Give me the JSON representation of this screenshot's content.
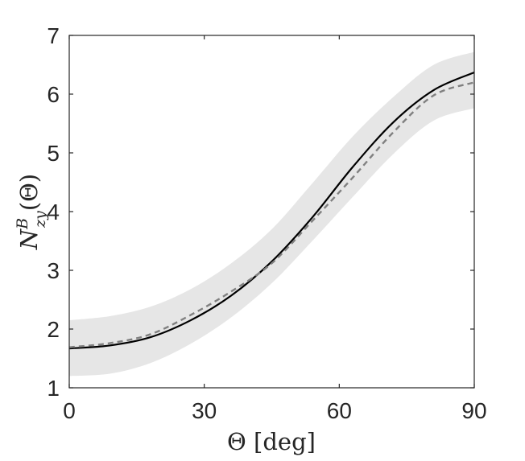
{
  "chart_data": {
    "type": "line",
    "xlabel": "Θ [deg]",
    "ylabel": {
      "main": "N",
      "sup": "B",
      "sub": "zy",
      "suffix": "(Θ)"
    },
    "xlim": [
      0,
      90
    ],
    "ylim": [
      1,
      7
    ],
    "xticks": [
      0,
      30,
      60,
      90
    ],
    "yticks": [
      1,
      2,
      3,
      4,
      5,
      6,
      7
    ],
    "grid": false,
    "series": [
      {
        "style": "solid",
        "color": "#000000",
        "x": [
          0,
          9,
          18,
          27,
          36,
          45,
          54,
          63,
          72,
          81,
          90
        ],
        "y": [
          1.67,
          1.72,
          1.86,
          2.15,
          2.57,
          3.15,
          3.9,
          4.76,
          5.52,
          6.07,
          6.37
        ]
      },
      {
        "style": "dashed",
        "color": "#808080",
        "x": [
          0,
          9,
          18,
          27,
          36,
          45,
          54,
          63,
          72,
          81,
          90
        ],
        "y": [
          1.69,
          1.76,
          1.91,
          2.24,
          2.64,
          3.12,
          3.84,
          4.58,
          5.35,
          5.98,
          6.2
        ]
      }
    ],
    "band": {
      "color": "#e6e6e6",
      "x": [
        0,
        9,
        18,
        27,
        36,
        45,
        54,
        63,
        72,
        81,
        90
      ],
      "upper": [
        2.15,
        2.22,
        2.38,
        2.68,
        3.12,
        3.7,
        4.48,
        5.28,
        5.95,
        6.5,
        6.72
      ],
      "lower": [
        1.2,
        1.24,
        1.42,
        1.75,
        2.2,
        2.78,
        3.5,
        4.25,
        4.98,
        5.55,
        5.76
      ]
    }
  }
}
